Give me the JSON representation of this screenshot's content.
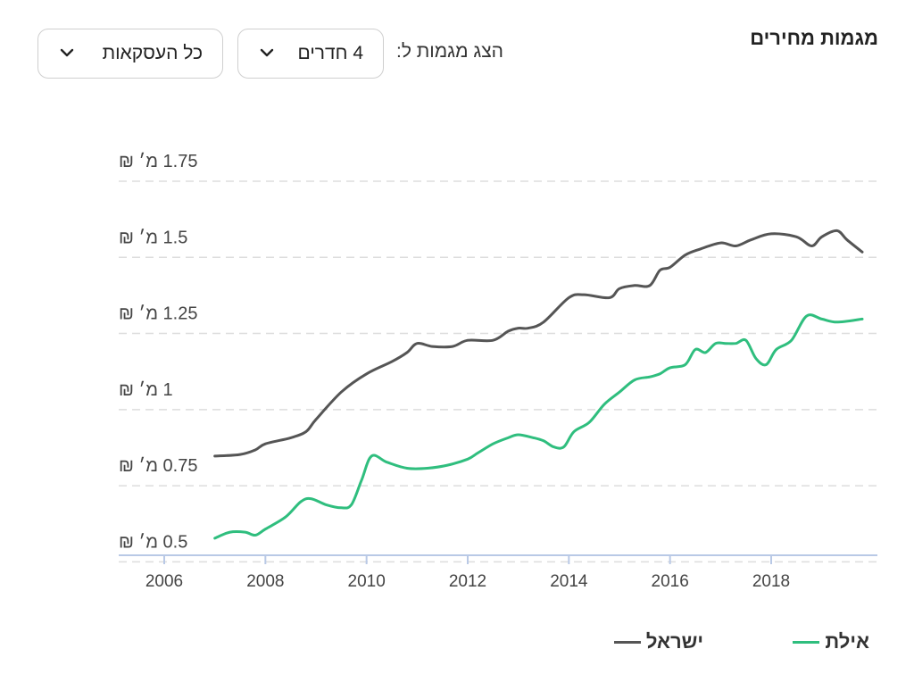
{
  "header": {
    "title": "מגמות מחירים",
    "show_label": "הצג מגמות ל:",
    "rooms_dropdown": "4 חדרים",
    "deals_dropdown": "כל העסקאות"
  },
  "colors": {
    "israel": "#555555",
    "eilat": "#2fbe7e",
    "grid": "#dddddd",
    "axis": "#b9c9e6"
  },
  "icons": {
    "dropdown": "chevron-down-icon"
  },
  "chart_data": {
    "type": "line",
    "title": "",
    "xlabel": "",
    "ylabel": "",
    "xlim": [
      2005.1,
      2020.1
    ],
    "ylim": [
      0.46,
      1.75
    ],
    "y_ticks": [
      0.5,
      0.75,
      1,
      1.25,
      1.5,
      1.75
    ],
    "y_tick_labels": [
      "0.5 מ׳ ₪",
      "0.75 מ׳ ₪",
      "1 מ׳ ₪",
      "1.25 מ׳ ₪",
      "1.5 מ׳ ₪",
      "1.75 מ׳ ₪"
    ],
    "x_ticks": [
      2006,
      2008,
      2010,
      2012,
      2014,
      2016,
      2018
    ],
    "x_tick_labels": [
      "2006",
      "2008",
      "2010",
      "2012",
      "2014",
      "2016",
      "2018"
    ],
    "grid": true,
    "legend_position": "bottom-right",
    "series": [
      {
        "name": "ישראל",
        "color": "#555555",
        "points": [
          [
            2007.0,
            0.78
          ],
          [
            2007.5,
            0.785
          ],
          [
            2007.8,
            0.8
          ],
          [
            2008.0,
            0.82
          ],
          [
            2008.5,
            0.84
          ],
          [
            2008.8,
            0.86
          ],
          [
            2009.0,
            0.9
          ],
          [
            2009.5,
            0.99
          ],
          [
            2010.0,
            1.05
          ],
          [
            2010.5,
            1.09
          ],
          [
            2010.8,
            1.12
          ],
          [
            2011.0,
            1.15
          ],
          [
            2011.3,
            1.14
          ],
          [
            2011.7,
            1.14
          ],
          [
            2012.0,
            1.16
          ],
          [
            2012.5,
            1.16
          ],
          [
            2012.8,
            1.19
          ],
          [
            2013.0,
            1.2
          ],
          [
            2013.2,
            1.2
          ],
          [
            2013.5,
            1.22
          ],
          [
            2014.0,
            1.3
          ],
          [
            2014.3,
            1.31
          ],
          [
            2014.8,
            1.3
          ],
          [
            2015.0,
            1.33
          ],
          [
            2015.3,
            1.34
          ],
          [
            2015.6,
            1.34
          ],
          [
            2015.8,
            1.39
          ],
          [
            2016.0,
            1.4
          ],
          [
            2016.3,
            1.44
          ],
          [
            2016.6,
            1.46
          ],
          [
            2017.0,
            1.48
          ],
          [
            2017.3,
            1.47
          ],
          [
            2017.6,
            1.49
          ],
          [
            2018.0,
            1.51
          ],
          [
            2018.5,
            1.5
          ],
          [
            2018.8,
            1.47
          ],
          [
            2019.0,
            1.5
          ],
          [
            2019.3,
            1.52
          ],
          [
            2019.5,
            1.49
          ],
          [
            2019.8,
            1.45
          ]
        ]
      },
      {
        "name": "אילת",
        "color": "#2fbe7e",
        "points": [
          [
            2007.0,
            0.51
          ],
          [
            2007.3,
            0.53
          ],
          [
            2007.6,
            0.53
          ],
          [
            2007.8,
            0.52
          ],
          [
            2008.0,
            0.54
          ],
          [
            2008.4,
            0.58
          ],
          [
            2008.7,
            0.63
          ],
          [
            2008.9,
            0.64
          ],
          [
            2009.2,
            0.62
          ],
          [
            2009.5,
            0.61
          ],
          [
            2009.7,
            0.62
          ],
          [
            2009.9,
            0.7
          ],
          [
            2010.1,
            0.78
          ],
          [
            2010.4,
            0.76
          ],
          [
            2010.8,
            0.74
          ],
          [
            2011.2,
            0.74
          ],
          [
            2011.6,
            0.75
          ],
          [
            2012.0,
            0.77
          ],
          [
            2012.2,
            0.79
          ],
          [
            2012.5,
            0.82
          ],
          [
            2012.8,
            0.84
          ],
          [
            2013.0,
            0.85
          ],
          [
            2013.3,
            0.84
          ],
          [
            2013.5,
            0.83
          ],
          [
            2013.7,
            0.81
          ],
          [
            2013.9,
            0.81
          ],
          [
            2014.1,
            0.86
          ],
          [
            2014.4,
            0.89
          ],
          [
            2014.7,
            0.95
          ],
          [
            2015.0,
            0.99
          ],
          [
            2015.3,
            1.03
          ],
          [
            2015.6,
            1.04
          ],
          [
            2015.8,
            1.05
          ],
          [
            2016.0,
            1.07
          ],
          [
            2016.3,
            1.08
          ],
          [
            2016.5,
            1.13
          ],
          [
            2016.7,
            1.12
          ],
          [
            2016.9,
            1.15
          ],
          [
            2017.1,
            1.15
          ],
          [
            2017.3,
            1.15
          ],
          [
            2017.5,
            1.16
          ],
          [
            2017.7,
            1.1
          ],
          [
            2017.9,
            1.08
          ],
          [
            2018.1,
            1.13
          ],
          [
            2018.4,
            1.16
          ],
          [
            2018.7,
            1.24
          ],
          [
            2019.0,
            1.23
          ],
          [
            2019.3,
            1.22
          ],
          [
            2019.8,
            1.23
          ]
        ]
      }
    ]
  }
}
